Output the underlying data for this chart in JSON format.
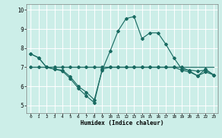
{
  "xlabel": "Humidex (Indice chaleur)",
  "ylabel": "",
  "background_color": "#cceee8",
  "grid_color": "#ffffff",
  "line_color": "#1a6b62",
  "xlim": [
    -0.5,
    23.5
  ],
  "ylim": [
    4.6,
    10.3
  ],
  "yticks": [
    5,
    6,
    7,
    8,
    9,
    10
  ],
  "xticks": [
    0,
    1,
    2,
    3,
    4,
    5,
    6,
    7,
    8,
    9,
    10,
    11,
    12,
    13,
    14,
    15,
    16,
    17,
    18,
    19,
    20,
    21,
    22,
    23
  ],
  "line1_x": [
    0,
    1,
    2,
    3,
    4,
    5,
    6,
    7,
    8,
    9,
    10,
    11,
    12,
    13,
    14,
    15,
    16,
    17,
    18,
    19,
    20,
    21,
    22,
    23
  ],
  "line1_y": [
    7.7,
    7.5,
    7.0,
    6.9,
    6.8,
    6.4,
    5.9,
    5.5,
    5.15,
    6.9,
    7.0,
    7.0,
    7.0,
    7.0,
    7.0,
    7.0,
    7.0,
    7.0,
    7.0,
    7.0,
    6.8,
    6.55,
    6.9,
    6.6
  ],
  "line2_x": [
    0,
    1,
    2,
    3,
    4,
    5,
    6,
    7,
    8,
    9,
    10,
    11,
    12,
    13,
    14,
    15,
    16,
    17,
    18,
    19,
    20,
    21,
    22,
    23
  ],
  "line2_y": [
    7.7,
    7.5,
    7.0,
    6.9,
    6.85,
    6.5,
    6.0,
    5.7,
    5.3,
    6.85,
    7.85,
    8.9,
    9.55,
    9.65,
    8.5,
    8.8,
    8.8,
    8.2,
    7.5,
    6.9,
    6.85,
    6.8,
    6.85,
    6.6
  ],
  "line3_x": [
    0,
    1,
    2,
    3,
    4,
    5,
    6,
    7,
    8,
    9,
    10,
    11,
    12,
    13,
    14,
    15,
    16,
    17,
    18,
    19,
    20,
    21,
    22,
    23
  ],
  "line3_y": [
    7.0,
    7.0,
    7.0,
    7.0,
    7.0,
    7.0,
    7.0,
    7.0,
    7.0,
    7.0,
    7.0,
    7.0,
    7.0,
    7.0,
    7.0,
    7.0,
    7.0,
    7.0,
    7.0,
    7.0,
    7.0,
    7.0,
    7.0,
    7.0
  ],
  "line4_x": [
    0,
    1,
    2,
    3,
    4,
    5,
    6,
    7,
    8,
    9,
    10,
    11,
    12,
    13,
    14,
    15,
    16,
    17,
    18,
    19,
    20,
    21,
    22,
    23
  ],
  "line4_y": [
    7.0,
    7.0,
    7.0,
    7.0,
    7.0,
    7.0,
    7.0,
    7.0,
    7.0,
    7.0,
    7.0,
    7.0,
    7.0,
    7.0,
    7.0,
    7.0,
    7.0,
    7.0,
    7.0,
    6.85,
    6.75,
    6.55,
    6.75,
    6.6
  ]
}
